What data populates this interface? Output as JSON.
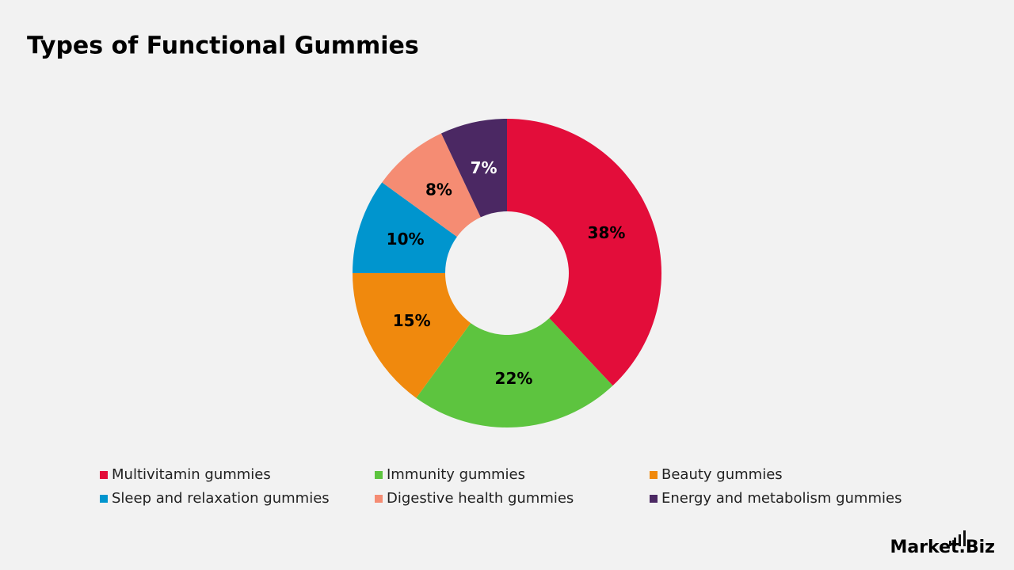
{
  "chart_data": {
    "type": "donut",
    "title": "Types of Functional Gummies",
    "categories": [
      "Multivitamin gummies",
      "Immunity gummies",
      "Beauty gummies",
      "Sleep and relaxation gummies",
      "Digestive health gummies",
      "Energy and metabolism gummies"
    ],
    "values": [
      38,
      22,
      15,
      10,
      8,
      7
    ],
    "value_labels": [
      "38%",
      "22%",
      "15%",
      "10%",
      "8%",
      "7%"
    ],
    "colors": [
      "#e30d3a",
      "#5dc43f",
      "#f0890d",
      "#0095ce",
      "#f58c73",
      "#4b2863"
    ],
    "value_label_colors": [
      "#000000",
      "#000000",
      "#000000",
      "#000000",
      "#000000",
      "#ffffff"
    ]
  },
  "logo": "Market.Biz"
}
